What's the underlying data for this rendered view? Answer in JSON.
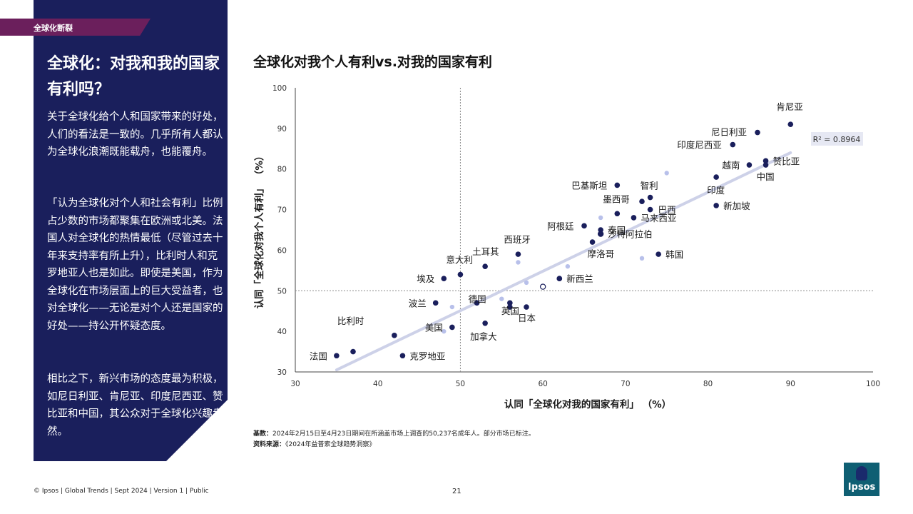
{
  "section_tag": "全球化断裂",
  "panel": {
    "heading": "全球化：对我和我的国家有利吗？",
    "para1": "关于全球化给个人和国家带来的好处，人们的看法是一致的。几乎所有人都认为全球化浪潮既能载舟，也能覆舟。",
    "para2": "「认为全球化对个人和社会有利」比例占少数的市场都聚集在欧洲或北美。法国人对全球化的热情最低（尽管过去十年来支持率有所上升），比利时人和克罗地亚人也是如此。即使是美国，作为全球化在市场层面上的巨大受益者，也对全球化——无论是对个人还是国家的好处——持公开怀疑态度。",
    "para3": "相比之下，新兴市场的态度最为积极，如尼日利亚、肯尼亚、印度尼西亚、赞比亚和中国，其公众对于全球化兴趣盎然。"
  },
  "chart_data": {
    "type": "scatter",
    "title": "全球化对我个人有利vs.对我的国家有利",
    "xlabel": "认同「全球化对我的国家有利」 （%）",
    "ylabel": "认同「全球化对我个人有利」 （%）",
    "xlim": [
      30,
      100
    ],
    "ylim": [
      30,
      100
    ],
    "xticks": [
      30,
      40,
      50,
      60,
      70,
      80,
      90,
      100
    ],
    "yticks": [
      30,
      40,
      50,
      60,
      70,
      80,
      90,
      100
    ],
    "reference_lines": {
      "x": 50,
      "y": 50
    },
    "trendline": {
      "r2_label": "R² = 0.8964",
      "from": [
        35,
        30.5
      ],
      "to": [
        90,
        84
      ]
    },
    "labeled_points": [
      {
        "label": "肯尼亚",
        "x": 90,
        "y": 91
      },
      {
        "label": "尼日利亚",
        "x": 86,
        "y": 89
      },
      {
        "label": "印度尼西亚",
        "x": 83,
        "y": 86
      },
      {
        "label": "越南",
        "x": 85,
        "y": 81
      },
      {
        "label": "赞比亚",
        "x": 87,
        "y": 82
      },
      {
        "label": "中国",
        "x": 87,
        "y": 81
      },
      {
        "label": "印度",
        "x": 81,
        "y": 78
      },
      {
        "label": "新加坡",
        "x": 81,
        "y": 71
      },
      {
        "label": "巴基斯坦",
        "x": 69,
        "y": 76
      },
      {
        "label": "智利",
        "x": 73,
        "y": 73
      },
      {
        "label": "墨西哥",
        "x": 69,
        "y": 69
      },
      {
        "label": "巴西",
        "x": 73,
        "y": 70
      },
      {
        "label": "马来西亚",
        "x": 71,
        "y": 68
      },
      {
        "label": "泰国",
        "x": 67,
        "y": 65
      },
      {
        "label": "阿根廷",
        "x": 65,
        "y": 66
      },
      {
        "label": "沙特阿拉伯",
        "x": 67,
        "y": 64
      },
      {
        "label": "摩洛哥",
        "x": 66,
        "y": 62
      },
      {
        "label": "韩国",
        "x": 74,
        "y": 59
      },
      {
        "label": "西班牙",
        "x": 57,
        "y": 59
      },
      {
        "label": "土耳其",
        "x": 53,
        "y": 56
      },
      {
        "label": "意大利",
        "x": 50,
        "y": 54
      },
      {
        "label": "埃及",
        "x": 48,
        "y": 53
      },
      {
        "label": "新西兰",
        "x": 62,
        "y": 53
      },
      {
        "label": "波兰",
        "x": 47,
        "y": 47
      },
      {
        "label": "英国",
        "x": 56,
        "y": 46
      },
      {
        "label": "日本",
        "x": 58,
        "y": 46
      },
      {
        "label": "德国",
        "x": 52,
        "y": 47
      },
      {
        "label": "加拿大",
        "x": 53,
        "y": 42
      },
      {
        "label": "美国",
        "x": 49,
        "y": 41
      },
      {
        "label": "比利时",
        "x": 42,
        "y": 39
      },
      {
        "label": "克罗地亚",
        "x": 43,
        "y": 34
      },
      {
        "label": "法国",
        "x": 35,
        "y": 34
      }
    ],
    "extra_points": [
      {
        "x": 37,
        "y": 35
      },
      {
        "x": 56,
        "y": 47
      },
      {
        "x": 72,
        "y": 72
      },
      {
        "x": 62,
        "y": 53
      }
    ],
    "unlabeled_light_points": [
      {
        "x": 75,
        "y": 79
      },
      {
        "x": 67,
        "y": 68
      },
      {
        "x": 57,
        "y": 57
      },
      {
        "x": 63,
        "y": 56
      },
      {
        "x": 72,
        "y": 58
      },
      {
        "x": 58,
        "y": 52
      },
      {
        "x": 55,
        "y": 48
      },
      {
        "x": 49,
        "y": 46
      },
      {
        "x": 48,
        "y": 40
      }
    ],
    "hollow_points": [
      {
        "x": 60,
        "y": 51
      },
      {
        "x": 67,
        "y": 64
      }
    ],
    "colors": {
      "point": "#1a1f5c",
      "light_point": "#b8c0ea",
      "trendline": "#cdd1e8",
      "r2_box": "#e6e8f3",
      "reference": "#8a8a8a"
    }
  },
  "footnotes": {
    "basis_label": "基数：",
    "basis_text": "2024年2月15日至4月23日期间在所涵盖市场上调查的50,237名成年人。部分市场已标注。",
    "source_label": "资料来源：",
    "source_text": "《2024年益普索全球趋势洞察》"
  },
  "footer": {
    "text": "© Ipsos | Global Trends | Sept 2024 | Version 1 | Public",
    "page_number": "21"
  },
  "logo": {
    "text": "Ipsos",
    "color": "#0f5f73"
  }
}
